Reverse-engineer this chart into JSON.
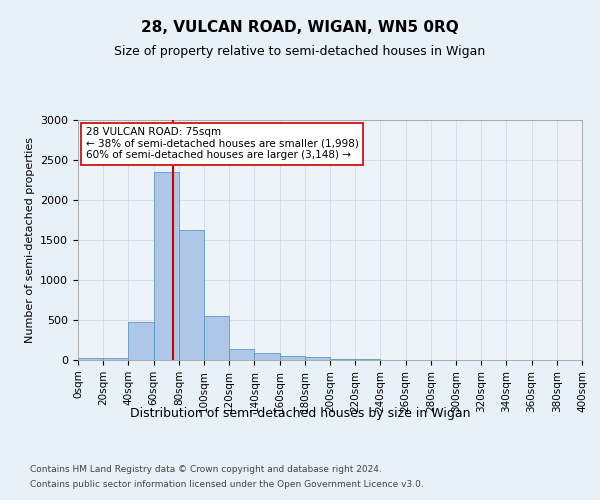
{
  "title": "28, VULCAN ROAD, WIGAN, WN5 0RQ",
  "subtitle": "Size of property relative to semi-detached houses in Wigan",
  "xlabel": "Distribution of semi-detached houses by size in Wigan",
  "ylabel": "Number of semi-detached properties",
  "bin_edges": [
    0,
    20,
    40,
    60,
    80,
    100,
    120,
    140,
    160,
    180,
    200,
    220,
    240,
    260,
    280,
    300,
    320,
    340,
    360,
    380,
    400
  ],
  "bar_heights": [
    30,
    30,
    480,
    2350,
    1620,
    550,
    140,
    90,
    50,
    40,
    15,
    10,
    5,
    3,
    2,
    1,
    1,
    1,
    0,
    0
  ],
  "bar_color": "#aec6e8",
  "bar_edge_color": "#5a9ac9",
  "property_size": 75,
  "property_line_color": "#cc0000",
  "annotation_line1": "28 VULCAN ROAD: 75sqm",
  "annotation_line2": "← 38% of semi-detached houses are smaller (1,998)",
  "annotation_line3": "60% of semi-detached houses are larger (3,148) →",
  "annotation_box_color": "#ffffff",
  "annotation_box_edge_color": "#cc0000",
  "ylim": [
    0,
    3000
  ],
  "yticks": [
    0,
    500,
    1000,
    1500,
    2000,
    2500,
    3000
  ],
  "footer_line1": "Contains HM Land Registry data © Crown copyright and database right 2024.",
  "footer_line2": "Contains public sector information licensed under the Open Government Licence v3.0.",
  "grid_color": "#d0dce8",
  "background_color": "#e8f0f8",
  "plot_background_color": "#eef3f9"
}
